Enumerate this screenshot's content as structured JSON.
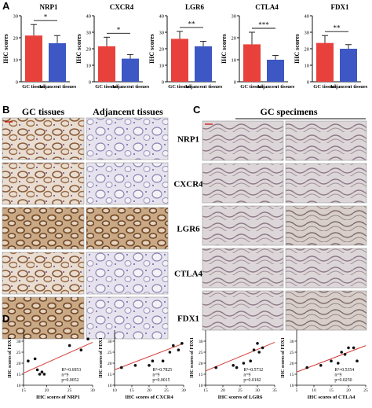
{
  "panels": {
    "a": "A",
    "b": "B",
    "c": "C",
    "d": "D"
  },
  "panel_a": {
    "ylabel": "IHC scores",
    "categories": [
      "GC tissues",
      "Adjancent tissues"
    ],
    "colors": {
      "gc": "#e8413c",
      "adj": "#3d57c4"
    }
  },
  "panel_b": {
    "headers": [
      "GC tissues",
      "Adjancent tissues"
    ],
    "markers": [
      "NRP1",
      "CXCR4",
      "LGR6",
      "CTLA4",
      "FDX1"
    ]
  },
  "panel_c": {
    "header": "GC specimens"
  },
  "chart_data": [
    {
      "type": "bar",
      "title": "NRP1",
      "ylabel": "IHC scores",
      "categories": [
        "GC tissues",
        "Adjancent tissues"
      ],
      "values": [
        21,
        17.5
      ],
      "errors": [
        5,
        3.5
      ],
      "ylim": [
        0,
        30
      ],
      "yticks": [
        0,
        10,
        20,
        30
      ],
      "significance": "*"
    },
    {
      "type": "bar",
      "title": "CXCR4",
      "ylabel": "IHC scores",
      "categories": [
        "GC tissues",
        "Adjancent tissues"
      ],
      "values": [
        21.5,
        14
      ],
      "errors": [
        5.5,
        2.5
      ],
      "ylim": [
        0,
        40
      ],
      "yticks": [
        0,
        10,
        20,
        30,
        40
      ],
      "significance": "*"
    },
    {
      "type": "bar",
      "title": "LGR6",
      "ylabel": "IHC scores",
      "categories": [
        "GC tissues",
        "Adjancent tissues"
      ],
      "values": [
        26,
        21.5
      ],
      "errors": [
        4.5,
        3
      ],
      "ylim": [
        0,
        40
      ],
      "yticks": [
        0,
        10,
        20,
        30,
        40
      ],
      "significance": "**"
    },
    {
      "type": "bar",
      "title": "CTLA4",
      "ylabel": "IHC scores",
      "categories": [
        "GC tissues",
        "Adjancent tissues"
      ],
      "values": [
        17,
        10
      ],
      "errors": [
        5.5,
        2
      ],
      "ylim": [
        0,
        30
      ],
      "yticks": [
        0,
        10,
        20,
        30
      ],
      "significance": "***"
    },
    {
      "type": "bar",
      "title": "FDX1",
      "ylabel": "IHC scores",
      "categories": [
        "GC tissues",
        "Adjancent tissues"
      ],
      "values": [
        23.5,
        20
      ],
      "errors": [
        4.5,
        2.5
      ],
      "ylim": [
        0,
        40
      ],
      "yticks": [
        0,
        10,
        20,
        30,
        40
      ],
      "significance": "**"
    },
    {
      "type": "scatter",
      "xlabel": "IHC scores of NRP1",
      "ylabel": "IHC scores of FDX1",
      "xlim": [
        15,
        30
      ],
      "xticks": [
        15,
        20,
        25,
        30
      ],
      "ylim": [
        10,
        35
      ],
      "yticks": [
        10,
        15,
        20,
        25,
        30
      ],
      "x": [
        16,
        17.5,
        18,
        18.5,
        19,
        19.5,
        25,
        27.5,
        29
      ],
      "y": [
        21,
        22,
        17,
        15,
        16,
        15,
        28,
        26,
        31
      ],
      "fit": [
        [
          15,
          15.5
        ],
        [
          30,
          29.5
        ]
      ],
      "stats": [
        "R²=0.6953",
        "n=9",
        "p=0.0052"
      ]
    },
    {
      "type": "scatter",
      "xlabel": "IHC scores of CXCR4",
      "ylabel": "IHC scores of FDX1",
      "xlim": [
        10,
        30
      ],
      "xticks": [
        10,
        15,
        20,
        25,
        30
      ],
      "ylim": [
        10,
        35
      ],
      "yticks": [
        10,
        15,
        20,
        25,
        30
      ],
      "x": [
        12,
        16,
        20,
        21,
        24,
        26,
        27,
        28.5,
        29.5
      ],
      "y": [
        18,
        19,
        19,
        21,
        21,
        25,
        28,
        26,
        29
      ],
      "fit": [
        [
          10,
          17
        ],
        [
          30,
          29
        ]
      ],
      "stats": [
        "R²=0.7825",
        "n=9",
        "p=0.0015"
      ]
    },
    {
      "type": "scatter",
      "xlabel": "IHC scores of LGR6",
      "ylabel": "IHC scores of FDX1",
      "xlim": [
        15,
        35
      ],
      "xticks": [
        15,
        20,
        25,
        30,
        35
      ],
      "ylim": [
        10,
        35
      ],
      "yticks": [
        10,
        15,
        20,
        25,
        30
      ],
      "x": [
        18,
        23,
        24,
        26,
        28,
        29,
        30,
        30.5,
        31.5
      ],
      "y": [
        18,
        19,
        18,
        20,
        21,
        26,
        29,
        25,
        27
      ],
      "fit": [
        [
          15,
          16.5
        ],
        [
          35,
          29.5
        ]
      ],
      "stats": [
        "R²=0.5732",
        "n=9",
        "p=0.0182"
      ]
    },
    {
      "type": "scatter",
      "xlabel": "IHC scores of CTLA4",
      "ylabel": "IHC scores of FDX1",
      "xlim": [
        5,
        25
      ],
      "xticks": [
        5,
        10,
        15,
        20,
        25
      ],
      "ylim": [
        10,
        35
      ],
      "yticks": [
        10,
        15,
        20,
        25,
        30
      ],
      "x": [
        8,
        12,
        15,
        17,
        18,
        19,
        20,
        21.5,
        22.5
      ],
      "y": [
        18,
        19,
        21,
        20,
        25,
        24,
        27,
        27,
        21
      ],
      "fit": [
        [
          5,
          16
        ],
        [
          25,
          28
        ]
      ],
      "stats": [
        "R²=0.5354",
        "n=9",
        "p=0.0250"
      ]
    }
  ]
}
